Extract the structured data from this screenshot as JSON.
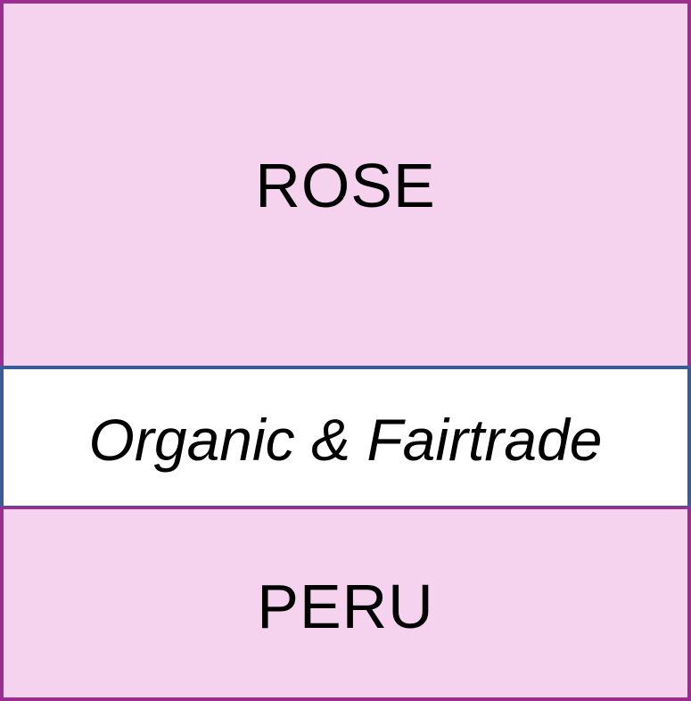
{
  "label": {
    "top_text": "ROSE",
    "middle_text": "Organic & Fairtrade",
    "bottom_text": "PERU"
  },
  "colors": {
    "band_fill": "#f5d2ee",
    "middle_fill": "#ffffff",
    "outer_border": "#9b2d8f",
    "middle_border": "#3a5a98",
    "text": "#000000"
  }
}
